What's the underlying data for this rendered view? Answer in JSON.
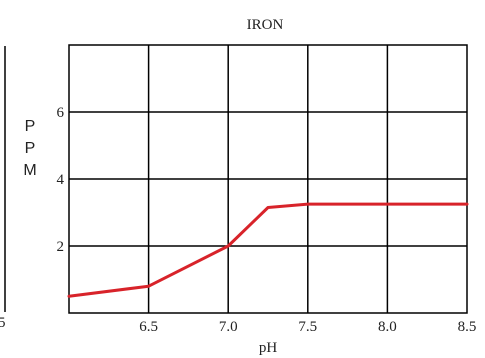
{
  "chart_data": {
    "type": "line",
    "title": "IRON",
    "xlabel": "pH",
    "ylabel_letters": [
      "P",
      "P",
      "M"
    ],
    "xlim": [
      6.0,
      8.5
    ],
    "ylim": [
      0,
      8
    ],
    "x_ticks": [
      "6.5",
      "7.0",
      "7.5",
      "8.0",
      "8.5"
    ],
    "y_ticks": [
      "2",
      "4",
      "6"
    ],
    "grid": true,
    "left_cut_tick": "5",
    "series": [
      {
        "color": "#d8232a",
        "x": [
          6.0,
          6.5,
          7.0,
          7.25,
          7.5,
          8.0,
          8.5
        ],
        "y": [
          0.5,
          0.8,
          2.0,
          3.15,
          3.25,
          3.25,
          3.25
        ]
      }
    ]
  }
}
